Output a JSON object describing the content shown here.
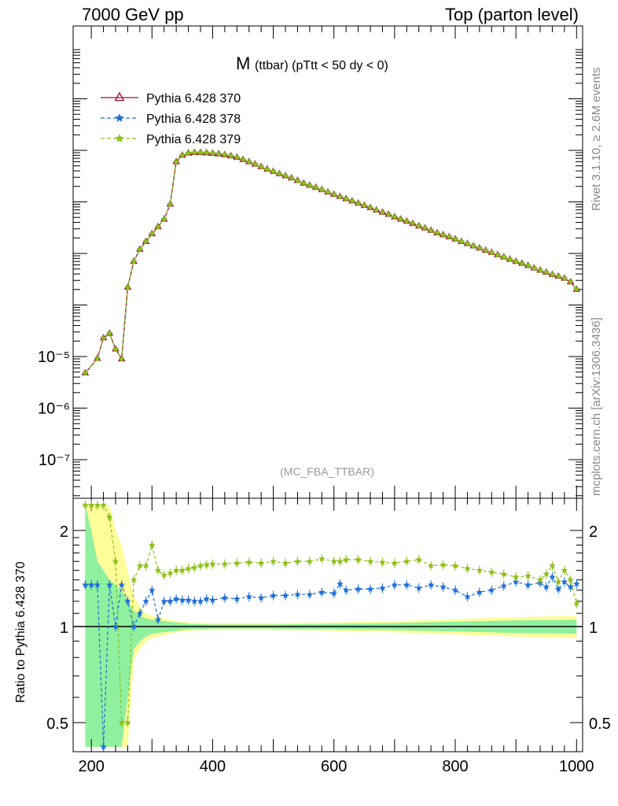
{
  "header": {
    "left": "7000 GeV pp",
    "right": "Top (parton level)"
  },
  "side": {
    "top": "Rivet 3.1.10, ≥ 2.6M events",
    "bottom": "mcplots.cern.ch [arXiv:1306.3436]"
  },
  "colors": {
    "s370": "#a0102a",
    "s378": "#1f6fd6",
    "s379": "#8fbf1a",
    "band_inner": "#8ff0a0",
    "band_outer": "#fdfd9a"
  },
  "chart_data": [
    {
      "type": "line",
      "title_main": "M",
      "title_sub": "(ttbar) (pTtt < 50 dy < 0)",
      "watermark": "(MC_FBA_TTBAR)",
      "xlabel": "",
      "ylabel": "",
      "xlim": [
        170,
        1010
      ],
      "yscale": "log",
      "ytick_labels": [
        "10⁻⁷",
        "10⁻⁶",
        "10⁻⁵"
      ],
      "legend": {
        "placement": "top-left",
        "entries": [
          "Pythia 6.428 370",
          "Pythia 6.428 378",
          "Pythia 6.428 379"
        ]
      },
      "series": [
        {
          "name": "Pythia 6.428 370",
          "marker": "triangle"
        },
        {
          "name": "Pythia 6.428 378",
          "marker": "star"
        },
        {
          "name": "Pythia 6.428 379",
          "marker": "star"
        }
      ],
      "x": [
        190,
        210,
        220,
        230,
        240,
        250,
        260,
        270,
        280,
        290,
        300,
        310,
        320,
        330,
        340,
        350,
        360,
        370,
        380,
        390,
        400,
        410,
        420,
        430,
        440,
        450,
        460,
        470,
        480,
        490,
        500,
        510,
        520,
        530,
        540,
        550,
        560,
        570,
        580,
        590,
        600,
        610,
        620,
        630,
        640,
        650,
        660,
        670,
        680,
        690,
        700,
        710,
        720,
        730,
        740,
        750,
        760,
        770,
        780,
        790,
        800,
        810,
        820,
        830,
        840,
        850,
        860,
        870,
        880,
        890,
        900,
        910,
        920,
        930,
        940,
        950,
        960,
        970,
        980,
        990,
        1000
      ],
      "values": [
        4.8e-06,
        9.2e-06,
        2.3e-05,
        2.8e-05,
        1.4e-05,
        9e-06,
        0.00022,
        0.0007,
        0.0012,
        0.0017,
        0.0024,
        0.0033,
        0.0046,
        0.009,
        0.06,
        0.08,
        0.088,
        0.09,
        0.09,
        0.089,
        0.087,
        0.085,
        0.082,
        0.078,
        0.073,
        0.066,
        0.06,
        0.054,
        0.048,
        0.043,
        0.039,
        0.035,
        0.032,
        0.029,
        0.026,
        0.023,
        0.021,
        0.019,
        0.0172,
        0.0155,
        0.014,
        0.0127,
        0.0115,
        0.0104,
        0.0094,
        0.0085,
        0.0077,
        0.0069,
        0.0063,
        0.0057,
        0.0051,
        0.0046,
        0.0042,
        0.0038,
        0.0034,
        0.0031,
        0.0028,
        0.0025,
        0.0023,
        0.0021,
        0.0019,
        0.0017,
        0.00155,
        0.0014,
        0.00127,
        0.00115,
        0.00104,
        0.00094,
        0.00085,
        0.00077,
        0.0007,
        0.00064,
        0.00058,
        0.00052,
        0.00047,
        0.00043,
        0.00039,
        0.00036,
        0.00033,
        0.00028,
        0.0002
      ]
    },
    {
      "type": "line",
      "xlabel": "",
      "ylabel": "Ratio to Pythia 6.428 370",
      "xlim": [
        170,
        1010
      ],
      "ylim": [
        0.42,
        2.4
      ],
      "yscale": "log",
      "yticks": [
        0.5,
        1,
        2
      ],
      "xticks": [
        200,
        400,
        600,
        800,
        1000
      ],
      "reference": 1,
      "band": {
        "x": [
          190,
          200,
          210,
          220,
          230,
          240,
          250,
          260,
          270,
          280,
          290,
          300,
          320,
          340,
          360,
          400,
          500,
          600,
          700,
          800,
          900,
          1000
        ],
        "inner_lo": [
          0.42,
          0.42,
          0.42,
          0.42,
          0.42,
          0.42,
          0.42,
          0.6,
          0.85,
          0.9,
          0.93,
          0.95,
          0.96,
          0.97,
          0.98,
          0.985,
          0.985,
          0.98,
          0.975,
          0.965,
          0.955,
          0.95
        ],
        "inner_hi": [
          2.4,
          2.0,
          1.6,
          1.5,
          1.4,
          1.35,
          1.3,
          1.2,
          1.12,
          1.08,
          1.06,
          1.05,
          1.04,
          1.03,
          1.02,
          1.015,
          1.015,
          1.02,
          1.025,
          1.035,
          1.045,
          1.05
        ],
        "outer_lo": [
          0.42,
          0.42,
          0.42,
          0.42,
          0.42,
          0.42,
          0.42,
          0.42,
          0.78,
          0.85,
          0.9,
          0.92,
          0.94,
          0.96,
          0.97,
          0.975,
          0.975,
          0.97,
          0.96,
          0.945,
          0.93,
          0.92
        ],
        "outer_hi": [
          2.4,
          2.4,
          2.4,
          2.4,
          2.4,
          2.0,
          1.8,
          1.5,
          1.25,
          1.15,
          1.1,
          1.08,
          1.06,
          1.04,
          1.03,
          1.025,
          1.025,
          1.03,
          1.04,
          1.055,
          1.07,
          1.08
        ]
      },
      "series": [
        {
          "name": "Pythia 6.428 378",
          "x": [
            190,
            200,
            210,
            220,
            230,
            240,
            250,
            260,
            270,
            280,
            290,
            300,
            310,
            320,
            330,
            340,
            350,
            360,
            370,
            380,
            390,
            400,
            420,
            440,
            460,
            480,
            500,
            520,
            540,
            560,
            580,
            600,
            610,
            620,
            640,
            660,
            680,
            700,
            720,
            740,
            760,
            780,
            800,
            820,
            840,
            860,
            880,
            900,
            920,
            940,
            950,
            960,
            970,
            980,
            990,
            1000
          ],
          "values": [
            1.35,
            1.35,
            1.35,
            0.42,
            1.35,
            1.0,
            1.35,
            1.2,
            1.0,
            1.1,
            1.2,
            1.3,
            1.05,
            1.2,
            1.2,
            1.22,
            1.21,
            1.21,
            1.2,
            1.2,
            1.22,
            1.21,
            1.23,
            1.22,
            1.24,
            1.23,
            1.25,
            1.25,
            1.26,
            1.26,
            1.28,
            1.27,
            1.36,
            1.3,
            1.31,
            1.31,
            1.32,
            1.35,
            1.35,
            1.32,
            1.35,
            1.33,
            1.3,
            1.24,
            1.28,
            1.3,
            1.34,
            1.38,
            1.35,
            1.37,
            1.33,
            1.43,
            1.31,
            1.38,
            1.33,
            1.36
          ]
        },
        {
          "name": "Pythia 6.428 379",
          "x": [
            190,
            200,
            210,
            220,
            230,
            240,
            250,
            260,
            270,
            280,
            290,
            300,
            310,
            320,
            330,
            340,
            350,
            360,
            370,
            380,
            390,
            400,
            420,
            440,
            460,
            480,
            500,
            520,
            540,
            560,
            580,
            600,
            610,
            620,
            640,
            660,
            680,
            700,
            720,
            740,
            760,
            780,
            800,
            820,
            840,
            860,
            880,
            900,
            920,
            940,
            950,
            960,
            970,
            980,
            990,
            1000
          ],
          "values": [
            2.4,
            2.4,
            2.4,
            2.4,
            2.2,
            1.6,
            0.5,
            0.5,
            1.4,
            1.55,
            1.55,
            1.8,
            1.5,
            1.45,
            1.47,
            1.5,
            1.5,
            1.52,
            1.53,
            1.55,
            1.56,
            1.57,
            1.57,
            1.58,
            1.59,
            1.58,
            1.6,
            1.58,
            1.6,
            1.6,
            1.63,
            1.6,
            1.6,
            1.62,
            1.62,
            1.6,
            1.59,
            1.58,
            1.6,
            1.62,
            1.55,
            1.56,
            1.55,
            1.52,
            1.5,
            1.48,
            1.46,
            1.43,
            1.44,
            1.4,
            1.46,
            1.55,
            1.38,
            1.5,
            1.4,
            1.18
          ]
        }
      ]
    }
  ]
}
